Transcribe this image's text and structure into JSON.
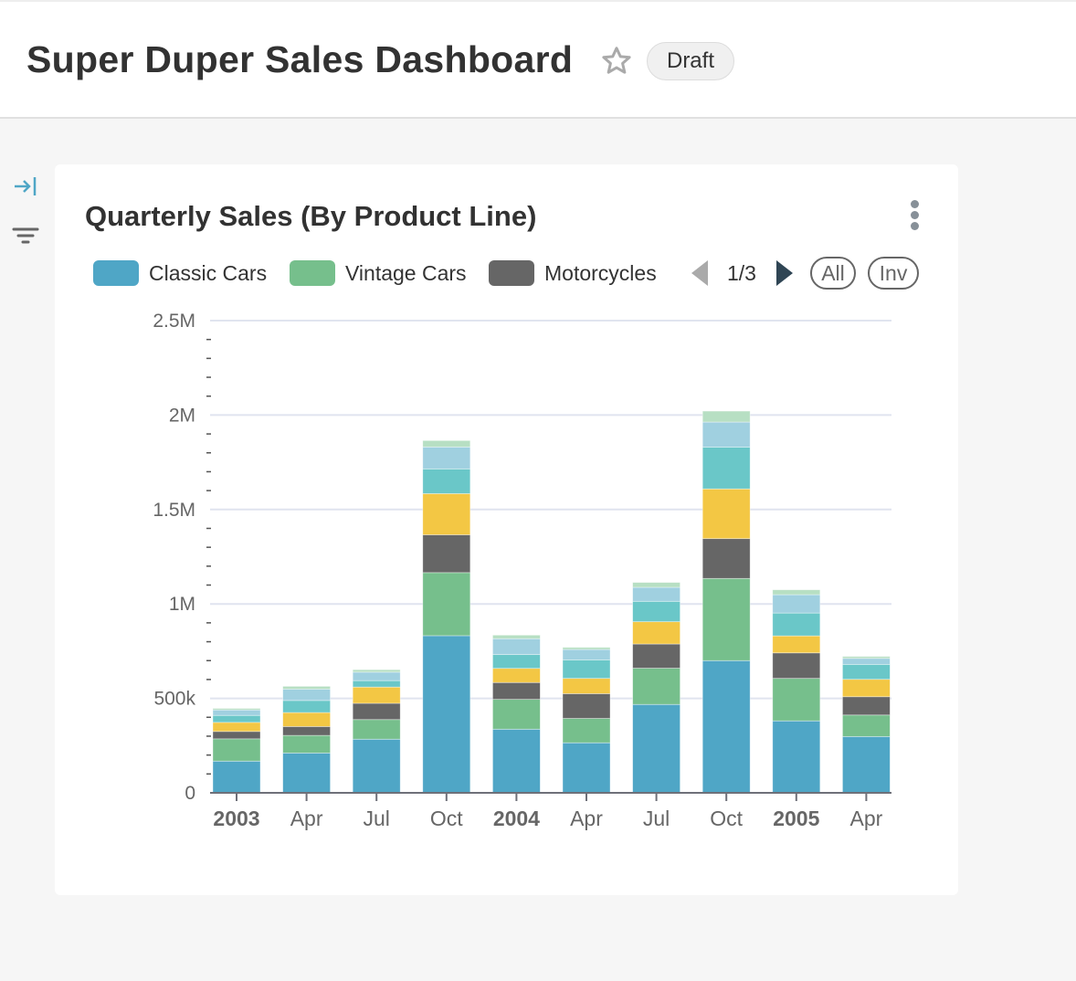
{
  "header": {
    "title": "Super Duper Sales Dashboard",
    "badge": "Draft",
    "star_icon": "star-outline-icon"
  },
  "sidebar": {
    "icons": [
      "expand-panel-icon",
      "filter-icon"
    ]
  },
  "card": {
    "title": "Quarterly Sales (By Product Line)",
    "menu_icon": "kebab-menu-icon",
    "legend": {
      "items": [
        {
          "label": "Classic Cars",
          "color": "#4fa6c6"
        },
        {
          "label": "Vintage Cars",
          "color": "#76bf8c"
        },
        {
          "label": "Motorcycles",
          "color": "#666666"
        }
      ],
      "page": "1/3",
      "all_label": "All",
      "inv_label": "Inv"
    }
  },
  "chart_data": {
    "type": "stacked-bar",
    "categories": [
      "2003",
      "Apr",
      "Jul",
      "Oct",
      "2004",
      "Apr",
      "Jul",
      "Oct",
      "2005",
      "Apr"
    ],
    "bold_categories": [
      "2003",
      "2004",
      "2005"
    ],
    "y_ticks": [
      "0",
      "500k",
      "1M",
      "1.5M",
      "2M",
      "2.5M"
    ],
    "ylim": [
      0,
      2500000
    ],
    "grid": true,
    "series": [
      {
        "name": "Classic Cars",
        "color": "#4fa6c6",
        "values": [
          168000,
          211000,
          284000,
          832000,
          337000,
          265000,
          468000,
          700000,
          381000,
          298000
        ]
      },
      {
        "name": "Vintage Cars",
        "color": "#76bf8c",
        "values": [
          118000,
          93000,
          104000,
          334000,
          158000,
          129000,
          192000,
          435000,
          225000,
          114000
        ]
      },
      {
        "name": "Motorcycles",
        "color": "#666666",
        "values": [
          39000,
          47000,
          86000,
          200000,
          89000,
          131000,
          128000,
          211000,
          135000,
          97000
        ]
      },
      {
        "color": "#f3c744",
        "values": [
          48000,
          74000,
          86000,
          218000,
          75000,
          81000,
          118000,
          263000,
          90000,
          92000
        ]
      },
      {
        "color": "#6ac7c8",
        "values": [
          37000,
          64000,
          34000,
          131000,
          73000,
          98000,
          108000,
          221000,
          121000,
          79000
        ]
      },
      {
        "color": "#a0d0e0",
        "values": [
          29000,
          60000,
          45000,
          116000,
          84000,
          55000,
          74000,
          133000,
          97000,
          32000
        ]
      },
      {
        "color": "#b7dfc3",
        "values": [
          8000,
          15000,
          13000,
          34000,
          19000,
          11000,
          26000,
          58000,
          26000,
          10000
        ]
      }
    ]
  }
}
